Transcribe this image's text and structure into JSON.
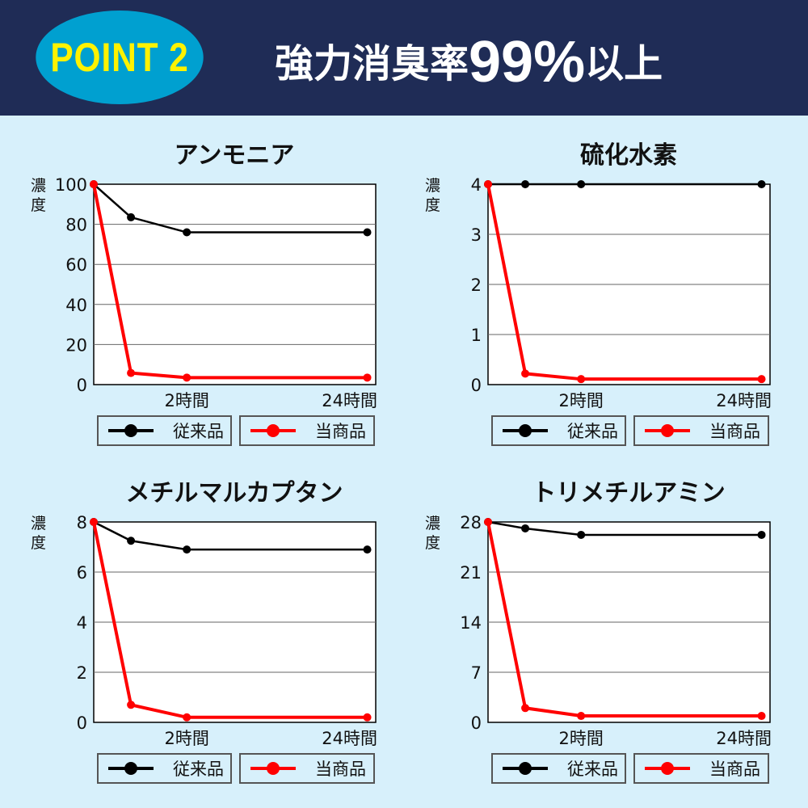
{
  "header": {
    "badge": "POINT  2",
    "headline_prefix": "強力消臭率",
    "headline_number": "99%",
    "headline_suffix": "以上"
  },
  "colors": {
    "header_bg": "#1f2c56",
    "badge_bg": "#00a0d0",
    "badge_text": "#fff200",
    "page_bg": "#d7f0fb",
    "conventional": "#000000",
    "product": "#ff0000"
  },
  "legend": {
    "conventional": "従来品",
    "product": "当商品"
  },
  "chart_data": [
    {
      "type": "line",
      "title": "アンモニア",
      "ylabel": "濃度",
      "ylim": [
        0,
        100
      ],
      "yticks": [
        0,
        20,
        40,
        60,
        80,
        100
      ],
      "xticklabels": [
        "",
        "",
        "2時間",
        "24時間"
      ],
      "grid": true,
      "series": [
        {
          "name": "従来品",
          "values": [
            100,
            83.5,
            76,
            76
          ]
        },
        {
          "name": "当商品",
          "values": [
            100,
            5.8,
            3.5,
            3.5
          ]
        }
      ]
    },
    {
      "type": "line",
      "title": "硫化水素",
      "ylabel": "濃度",
      "ylim": [
        0,
        4
      ],
      "yticks": [
        0,
        1,
        2,
        3,
        4
      ],
      "xticklabels": [
        "",
        "",
        "2時間",
        "24時間"
      ],
      "grid": true,
      "series": [
        {
          "name": "従来品",
          "values": [
            4,
            4,
            4,
            4
          ]
        },
        {
          "name": "当商品",
          "values": [
            4,
            0.22,
            0.11,
            0.11
          ]
        }
      ]
    },
    {
      "type": "line",
      "title": "メチルマルカプタン",
      "ylabel": "濃度",
      "ylim": [
        0,
        8
      ],
      "yticks": [
        0,
        2,
        4,
        6,
        8
      ],
      "xticklabels": [
        "",
        "",
        "2時間",
        "24時間"
      ],
      "grid": true,
      "series": [
        {
          "name": "従来品",
          "values": [
            8,
            7.25,
            6.9,
            6.9
          ]
        },
        {
          "name": "当商品",
          "values": [
            8,
            0.7,
            0.2,
            0.2
          ]
        }
      ]
    },
    {
      "type": "line",
      "title": "トリメチルアミン",
      "ylabel": "濃度",
      "ylim": [
        0,
        28
      ],
      "yticks": [
        0,
        7,
        14,
        21,
        28
      ],
      "xticklabels": [
        "",
        "",
        "2時間",
        "24時間"
      ],
      "grid": true,
      "series": [
        {
          "name": "従来品",
          "values": [
            28,
            27.1,
            26.2,
            26.2
          ]
        },
        {
          "name": "当商品",
          "values": [
            28,
            2.0,
            0.9,
            0.9
          ]
        }
      ]
    }
  ]
}
